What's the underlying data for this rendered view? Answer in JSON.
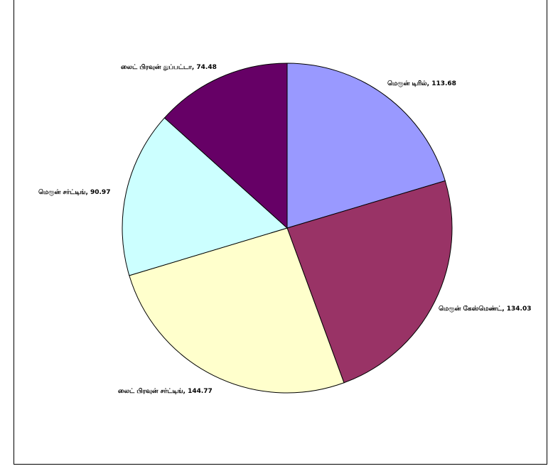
{
  "chart_data": {
    "type": "pie",
    "title": "",
    "slices": [
      {
        "label": "மெரூன் டிரில்",
        "value": 113.68,
        "color": "#9999FF"
      },
      {
        "label": "மெரூன் கேஸ்மெண்ட்",
        "value": 134.03,
        "color": "#993366"
      },
      {
        "label": "லைட் பிரவுன் சர்ட்டிங்",
        "value": 144.77,
        "color": "#FFFFCC"
      },
      {
        "label": "மெரூன் சர்ட்டிங்",
        "value": 90.97,
        "color": "#CCFFFF"
      },
      {
        "label": "லைட் பிரவுன் துப்பட்டா",
        "value": 74.48,
        "color": "#660066"
      }
    ],
    "legend": "none",
    "data_labels": "category-and-value",
    "start_angle": "12 o'clock",
    "direction": "clockwise"
  }
}
